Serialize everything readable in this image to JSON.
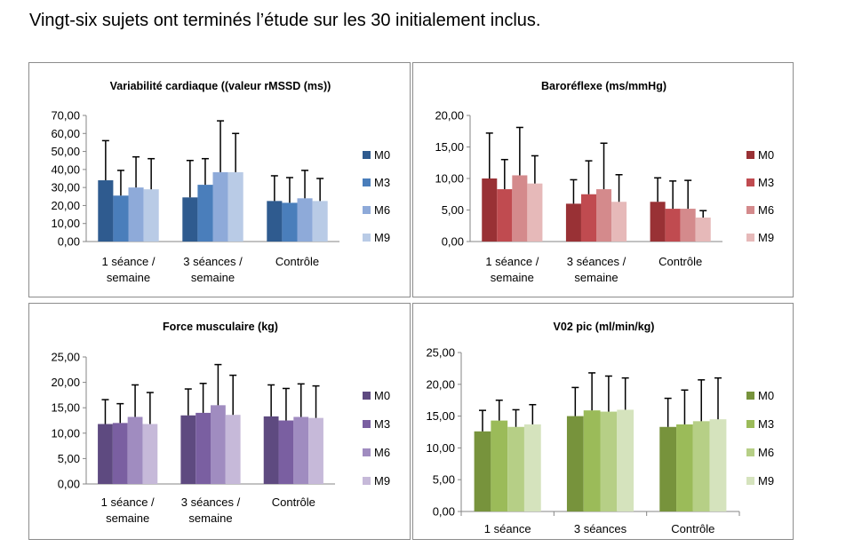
{
  "headline": "Vingt-six sujets ont terminés l’étude sur les 30 initialement inclus.",
  "chart_data": [
    {
      "type": "bar",
      "title": "Variabilité cardiaque ((valeur rMSSD (ms))",
      "categories": [
        [
          "1 séance /",
          "semaine"
        ],
        [
          "3 séances /",
          "semaine"
        ],
        [
          "Contrôle"
        ]
      ],
      "ylim": [
        0,
        70
      ],
      "yticks": [
        "0,00",
        "10,00",
        "20,00",
        "30,00",
        "40,00",
        "50,00",
        "60,00",
        "70,00"
      ],
      "legend_position": "right",
      "colors": [
        "#2f5b8f",
        "#4a7ebb",
        "#8eaad9",
        "#b9cbe6"
      ],
      "series": [
        {
          "name": "M0",
          "values": [
            34,
            24.5,
            22.5
          ],
          "errors": [
            22,
            20.5,
            14
          ]
        },
        {
          "name": "M3",
          "values": [
            25.5,
            31.5,
            21.5
          ],
          "errors": [
            14,
            14.5,
            14
          ]
        },
        {
          "name": "M6",
          "values": [
            30,
            38.5,
            24
          ],
          "errors": [
            17,
            28.5,
            15.5
          ]
        },
        {
          "name": "M9",
          "values": [
            29,
            38.5,
            22.5
          ],
          "errors": [
            17,
            21.5,
            12.5
          ]
        }
      ]
    },
    {
      "type": "bar",
      "title": "Baroréflexe (ms/mmHg)",
      "categories": [
        [
          "1 séance /",
          "semaine"
        ],
        [
          "3 séances /",
          "semaine"
        ],
        [
          "Contrôle"
        ]
      ],
      "ylim": [
        0,
        20
      ],
      "yticks": [
        "0,00",
        "5,00",
        "10,00",
        "15,00",
        "20,00"
      ],
      "legend_position": "right",
      "colors": [
        "#993135",
        "#c04b50",
        "#d48a8c",
        "#e6b9b9"
      ],
      "series": [
        {
          "name": "M0",
          "values": [
            10,
            6,
            6.3
          ],
          "errors": [
            7.2,
            3.8,
            3.8
          ]
        },
        {
          "name": "M3",
          "values": [
            8.3,
            7.5,
            5.2
          ],
          "errors": [
            4.7,
            5.3,
            4.4
          ]
        },
        {
          "name": "M6",
          "values": [
            10.5,
            8.3,
            5.2
          ],
          "errors": [
            7.6,
            7.3,
            4.5
          ]
        },
        {
          "name": "M9",
          "values": [
            9.2,
            6.3,
            3.8
          ],
          "errors": [
            4.4,
            4.3,
            1.1
          ]
        }
      ]
    },
    {
      "type": "bar",
      "title": "Force musculaire (kg)",
      "categories": [
        [
          "1 séance /",
          "semaine"
        ],
        [
          "3 séances /",
          "semaine"
        ],
        [
          "Contrôle"
        ]
      ],
      "ylim": [
        0,
        25
      ],
      "yticks": [
        "0,00",
        "5,00",
        "10,00",
        "15,00",
        "20,00",
        "25,00"
      ],
      "legend_position": "right",
      "colors": [
        "#5e4a80",
        "#7a5fa1",
        "#a08cc0",
        "#c6b9d9"
      ],
      "series": [
        {
          "name": "M0",
          "values": [
            11.8,
            13.5,
            13.3
          ],
          "errors": [
            4.8,
            5.2,
            6.2
          ]
        },
        {
          "name": "M3",
          "values": [
            12,
            14,
            12.5
          ],
          "errors": [
            3.8,
            5.8,
            6.3
          ]
        },
        {
          "name": "M6",
          "values": [
            13.2,
            15.5,
            13.2
          ],
          "errors": [
            6.3,
            8,
            6.5
          ]
        },
        {
          "name": "M9",
          "values": [
            11.8,
            13.6,
            13
          ],
          "errors": [
            6.2,
            7.8,
            6.3
          ]
        }
      ]
    },
    {
      "type": "bar",
      "title": "V02 pic (ml/min/kg)",
      "categories": [
        [
          "1 séance"
        ],
        [
          "3 séances"
        ],
        [
          "Contrôle"
        ]
      ],
      "ylim": [
        0,
        25
      ],
      "yticks": [
        "0,00",
        "5,00",
        "10,00",
        "15,00",
        "20,00",
        "25,00"
      ],
      "legend_position": "right",
      "colors": [
        "#77933c",
        "#9bbb59",
        "#b6cf86",
        "#d5e3bd"
      ],
      "series": [
        {
          "name": "M0",
          "values": [
            12.6,
            15,
            13.3
          ],
          "errors": [
            3.3,
            4.5,
            4.5
          ]
        },
        {
          "name": "M3",
          "values": [
            14.3,
            15.9,
            13.7
          ],
          "errors": [
            3.2,
            5.9,
            5.4
          ]
        },
        {
          "name": "M6",
          "values": [
            13.3,
            15.7,
            14.2
          ],
          "errors": [
            2.7,
            5.6,
            6.5
          ]
        },
        {
          "name": "M9",
          "values": [
            13.7,
            16,
            14.5
          ],
          "errors": [
            3.1,
            5,
            6.5
          ]
        }
      ]
    }
  ]
}
